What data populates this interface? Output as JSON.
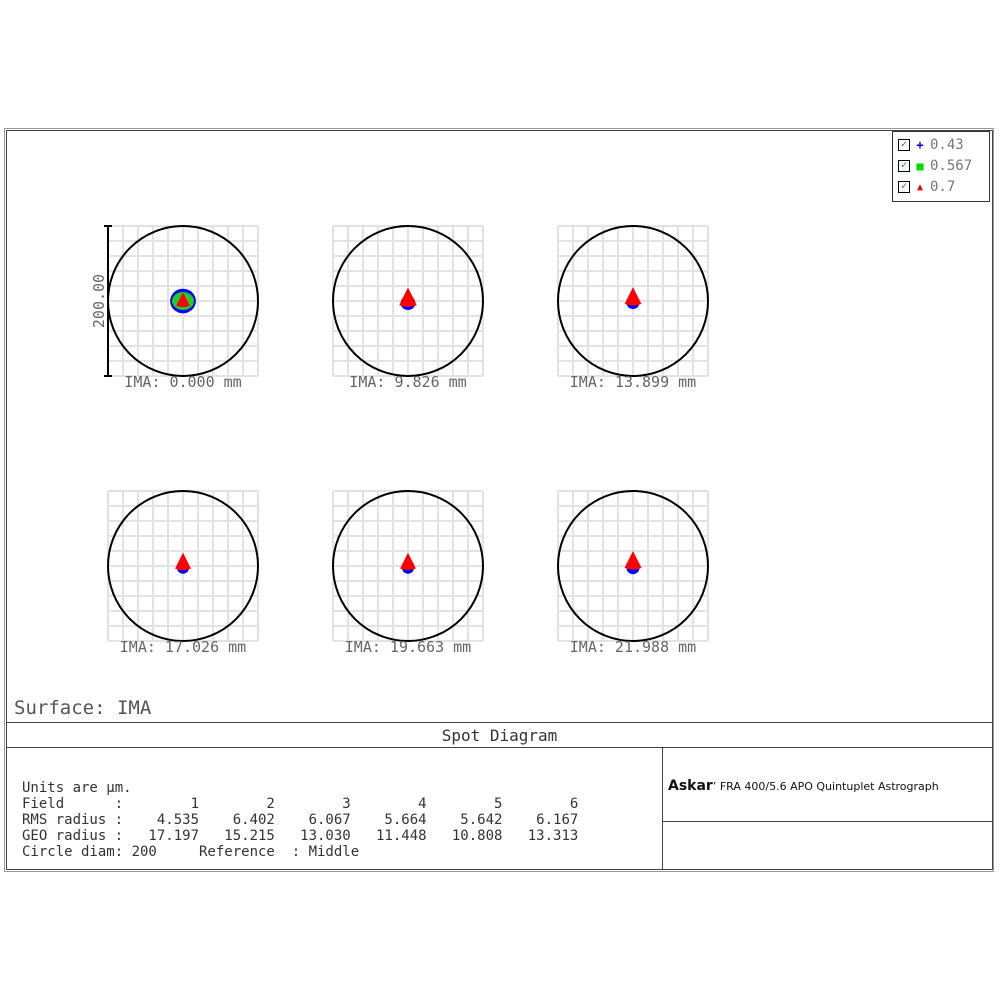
{
  "chart_data": {
    "type": "scatter",
    "title": "Spot Diagram",
    "surface": "Surface: IMA",
    "scale_label": "200.00",
    "legend": [
      {
        "label": "0.43",
        "color": "#0000ff",
        "symbol": "plus"
      },
      {
        "label": "0.567",
        "color": "#00dd00",
        "symbol": "square"
      },
      {
        "label": "0.7",
        "color": "#ff0000",
        "symbol": "triangle"
      }
    ],
    "fields": [
      {
        "label": "IMA: 0.000 mm"
      },
      {
        "label": "IMA: 9.826 mm"
      },
      {
        "label": "IMA: 13.899 mm"
      },
      {
        "label": "IMA: 17.026 mm"
      },
      {
        "label": "IMA: 19.663 mm"
      },
      {
        "label": "IMA: 21.988 mm"
      }
    ],
    "circle_diam": 200,
    "rms_radius": [
      4.535,
      6.402,
      6.067,
      5.664,
      5.642,
      6.167
    ],
    "geo_radius": [
      17.197,
      15.215,
      13.03,
      11.448,
      10.808,
      13.313
    ]
  },
  "table": {
    "units": "Units are µm.",
    "field_row": "Field      :        1        2        3        4        5        6",
    "rms_row": "RMS radius :    4.535    6.402    6.067    5.664    5.642    6.167",
    "geo_row": "GEO radius :   17.197   15.215   13.030   11.448   10.808   13.313",
    "circle_row": "Circle diam: 200     Reference  : Middle"
  },
  "brand": {
    "logo": "Askar",
    "text": "FRA 400/5.6 APO Quintuplet Astrograph"
  }
}
